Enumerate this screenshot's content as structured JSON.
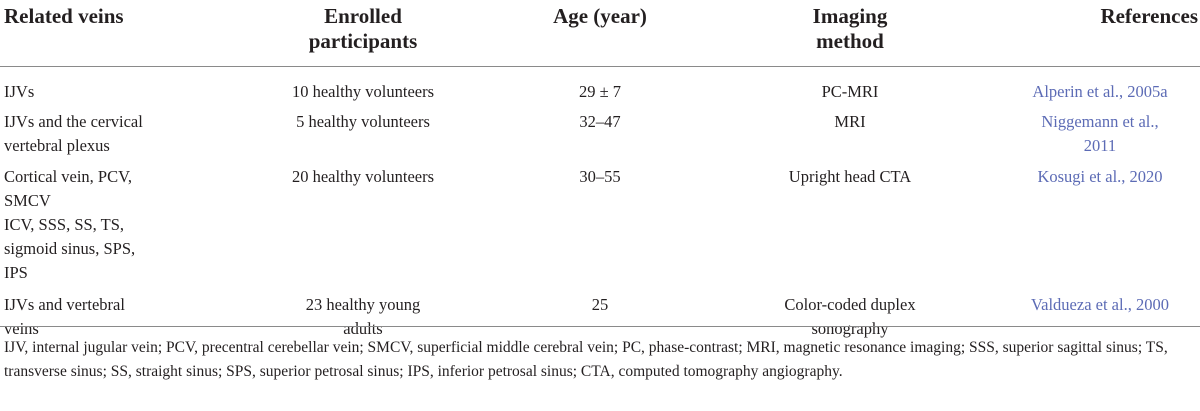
{
  "header": {
    "col_veins": "Related veins",
    "col_participants_line1": "Enrolled",
    "col_participants_line2": "participants",
    "col_age": "Age (year)",
    "col_imaging_line1": "Imaging",
    "col_imaging_line2": "method",
    "col_references": "References"
  },
  "rows": [
    {
      "veins": [
        "IJVs"
      ],
      "participants": [
        "10 healthy volunteers"
      ],
      "age": "29 ± 7",
      "imaging": [
        "PC-MRI"
      ],
      "reference": [
        "Alperin et al., 2005a"
      ]
    },
    {
      "veins": [
        "IJVs and the cervical",
        "vertebral plexus"
      ],
      "participants": [
        "5 healthy volunteers"
      ],
      "age": "32–47",
      "imaging": [
        "MRI"
      ],
      "reference": [
        "Niggemann et al.,",
        "2011"
      ]
    },
    {
      "veins": [
        "Cortical vein, PCV,",
        "SMCV",
        "ICV, SSS, SS, TS,",
        "sigmoid sinus, SPS,",
        "IPS"
      ],
      "participants": [
        "20 healthy volunteers"
      ],
      "age": "30–55",
      "imaging": [
        "Upright head CTA"
      ],
      "reference": [
        "Kosugi et al., 2020"
      ]
    },
    {
      "veins": [
        "IJVs and vertebral",
        "veins"
      ],
      "participants": [
        "23 healthy young",
        "adults"
      ],
      "age": "25",
      "imaging": [
        "Color-coded duplex",
        "sonography"
      ],
      "reference": [
        "Valdueza et al., 2000"
      ]
    }
  ],
  "footnote_line1": "IJV, internal jugular vein; PCV, precentral cerebellar vein; SMCV, superficial middle cerebral vein; PC, phase-contrast; MRI, magnetic resonance imaging; SSS, superior sagittal sinus; TS,",
  "footnote_line2": "transverse sinus; SS, straight sinus; SPS, superior petrosal sinus; IPS, inferior petrosal sinus; CTA, computed tomography angiography.",
  "colors": {
    "text": "#231f20",
    "reference_link": "#5c6bb5",
    "rule": "#8a8a8a"
  }
}
